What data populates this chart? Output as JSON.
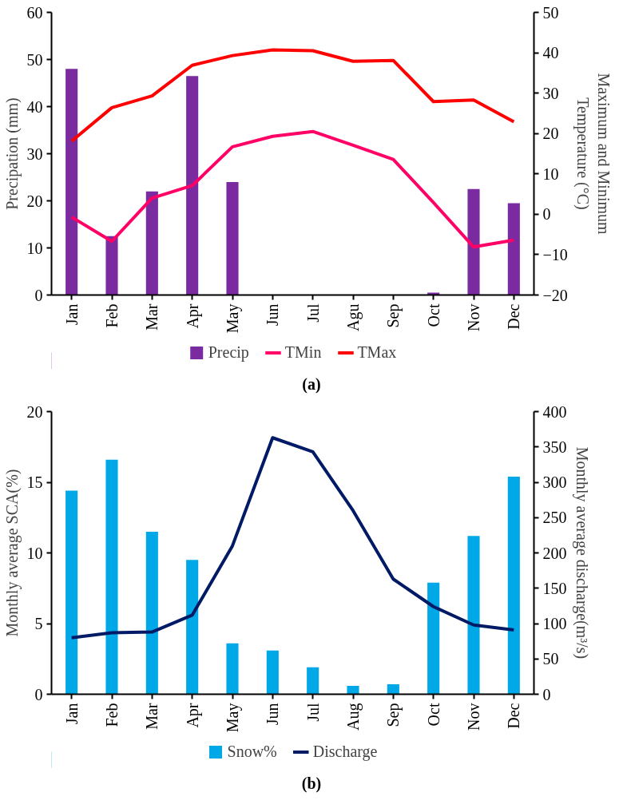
{
  "chart_data": [
    {
      "type": "bar",
      "categories": [
        "Jan",
        "Feb",
        "Mar",
        "Apr",
        "May",
        "Jun",
        "Jul",
        "Agu",
        "Sep",
        "Oct",
        "Nov",
        "Dec"
      ],
      "ylabel": "Precipation (mm)",
      "y2label": "Maximum and Minimum Temperature (°C)",
      "ylim": [
        0,
        60
      ],
      "yticks": [
        0,
        10,
        20,
        30,
        40,
        50,
        60
      ],
      "y2lim": [
        -20,
        50
      ],
      "y2ticks": [
        -20,
        -10,
        0,
        10,
        20,
        30,
        40,
        50
      ],
      "grid": false,
      "legend": "bottom",
      "annotations": [
        "(a)"
      ],
      "series": [
        {
          "name": "Precip",
          "color": "#7b2ba0",
          "values": [
            48,
            12.5,
            22,
            46.5,
            24,
            0,
            0,
            0,
            0,
            0.5,
            22.5,
            19.5
          ]
        },
        {
          "name": "TMin",
          "type": "line",
          "axis": "y2",
          "color": "#ff0066",
          "values": [
            -0.7,
            -6.7,
            4.0,
            7.1,
            16.7,
            19.3,
            20.5,
            17.1,
            13.6,
            2.9,
            -8.1,
            -6.4
          ]
        },
        {
          "name": "TMax",
          "type": "line",
          "axis": "y2",
          "color": "#ff0000",
          "values": [
            18.1,
            26.4,
            29.3,
            36.9,
            39.3,
            40.7,
            40.5,
            37.9,
            38.1,
            27.9,
            28.3,
            22.9
          ]
        }
      ]
    },
    {
      "type": "bar",
      "categories": [
        "Jan",
        "Feb",
        "Mar",
        "Apr",
        "May",
        "Jun",
        "Jul",
        "Aug",
        "Sep",
        "Oct",
        "Nov",
        "Dec"
      ],
      "ylabel": "Monthly average SCA(%)",
      "y2label": "Monthly average discharge(m³/s)",
      "ylim": [
        0,
        20
      ],
      "yticks": [
        0,
        5,
        10,
        15,
        20
      ],
      "y2lim": [
        0,
        400
      ],
      "y2ticks": [
        0,
        50,
        100,
        150,
        200,
        250,
        300,
        350,
        400
      ],
      "grid": false,
      "legend": "bottom",
      "annotations": [
        "(b)"
      ],
      "series": [
        {
          "name": "Snow%",
          "color": "#00a8e8",
          "values": [
            14.4,
            16.6,
            11.5,
            9.5,
            3.6,
            3.1,
            1.9,
            0.6,
            0.7,
            7.9,
            11.2,
            15.4
          ]
        },
        {
          "name": "Discharge",
          "type": "line",
          "axis": "y2",
          "color": "#001a66",
          "values": [
            80,
            87,
            88,
            112,
            210,
            363,
            343,
            260,
            163,
            124,
            98,
            91
          ]
        }
      ]
    }
  ]
}
